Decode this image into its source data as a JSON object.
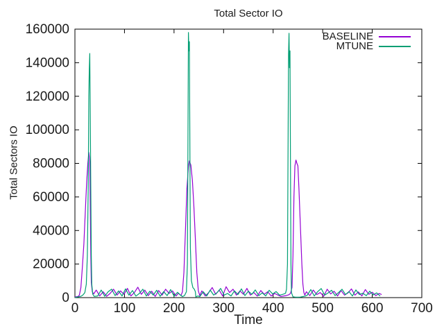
{
  "chart_data": {
    "type": "line",
    "title": "Total Sector IO",
    "xlabel": "Time",
    "ylabel": "Total Sectors IO",
    "xlim": [
      0,
      700
    ],
    "ylim": [
      0,
      160000
    ],
    "xticks": [
      0,
      100,
      200,
      300,
      400,
      500,
      600,
      700
    ],
    "yticks": [
      0,
      20000,
      40000,
      60000,
      80000,
      100000,
      120000,
      140000,
      160000
    ],
    "grid": false,
    "legend_position": "top-right-inside",
    "border_color": "#000000",
    "text_color": "#1a1a1a",
    "series": [
      {
        "name": "BASELINE",
        "color": "#9400d3",
        "points": [
          [
            0,
            400
          ],
          [
            6,
            600
          ],
          [
            9,
            1500
          ],
          [
            12,
            6000
          ],
          [
            15,
            18000
          ],
          [
            18,
            32000
          ],
          [
            20,
            45000
          ],
          [
            22,
            58000
          ],
          [
            24,
            70000
          ],
          [
            26,
            80000
          ],
          [
            28,
            86500
          ],
          [
            29,
            84000
          ],
          [
            30,
            81000
          ],
          [
            31,
            55000
          ],
          [
            32,
            25000
          ],
          [
            33,
            9000
          ],
          [
            35,
            3500
          ],
          [
            38,
            2200
          ],
          [
            43,
            4500
          ],
          [
            50,
            1000
          ],
          [
            57,
            3500
          ],
          [
            64,
            800
          ],
          [
            71,
            2500
          ],
          [
            78,
            5000
          ],
          [
            85,
            1500
          ],
          [
            92,
            4000
          ],
          [
            99,
            2000
          ],
          [
            106,
            5500
          ],
          [
            113,
            1000
          ],
          [
            120,
            3000
          ],
          [
            127,
            6200
          ],
          [
            134,
            2000
          ],
          [
            141,
            4500
          ],
          [
            148,
            1200
          ],
          [
            155,
            3800
          ],
          [
            162,
            700
          ],
          [
            169,
            4200
          ],
          [
            176,
            1500
          ],
          [
            183,
            5000
          ],
          [
            190,
            2500
          ],
          [
            197,
            4000
          ],
          [
            204,
            1000
          ],
          [
            209,
            2600
          ],
          [
            214,
            1200
          ],
          [
            217,
            3500
          ],
          [
            220,
            15000
          ],
          [
            223,
            40000
          ],
          [
            226,
            65000
          ],
          [
            229,
            78000
          ],
          [
            231,
            81500
          ],
          [
            234,
            79000
          ],
          [
            237,
            70000
          ],
          [
            240,
            55000
          ],
          [
            243,
            35000
          ],
          [
            246,
            15000
          ],
          [
            249,
            4000
          ],
          [
            252,
            1200
          ],
          [
            256,
            4000
          ],
          [
            263,
            1000
          ],
          [
            270,
            3000
          ],
          [
            277,
            6000
          ],
          [
            284,
            2000
          ],
          [
            291,
            4500
          ],
          [
            298,
            1000
          ],
          [
            305,
            6500
          ],
          [
            312,
            3000
          ],
          [
            319,
            5000
          ],
          [
            326,
            1500
          ],
          [
            333,
            4000
          ],
          [
            340,
            2000
          ],
          [
            347,
            5500
          ],
          [
            354,
            1500
          ],
          [
            361,
            3000
          ],
          [
            368,
            900
          ],
          [
            375,
            4200
          ],
          [
            382,
            2000
          ],
          [
            389,
            3500
          ],
          [
            396,
            1000
          ],
          [
            403,
            2500
          ],
          [
            410,
            1500
          ],
          [
            416,
            700
          ],
          [
            420,
            900
          ],
          [
            426,
            1200
          ],
          [
            431,
            1600
          ],
          [
            435,
            2500
          ],
          [
            438,
            6000
          ],
          [
            440,
            25000
          ],
          [
            442,
            60000
          ],
          [
            444,
            78500
          ],
          [
            446,
            82000
          ],
          [
            448,
            80000
          ],
          [
            450,
            78500
          ],
          [
            452,
            65000
          ],
          [
            454,
            50000
          ],
          [
            456,
            35000
          ],
          [
            458,
            20000
          ],
          [
            460,
            8000
          ],
          [
            462,
            3000
          ],
          [
            464,
            1500
          ],
          [
            467,
            3500
          ],
          [
            474,
            1200
          ],
          [
            481,
            4500
          ],
          [
            488,
            1800
          ],
          [
            495,
            3000
          ],
          [
            502,
            800
          ],
          [
            509,
            5000
          ],
          [
            516,
            2200
          ],
          [
            523,
            3800
          ],
          [
            530,
            1000
          ],
          [
            537,
            4200
          ],
          [
            544,
            1500
          ],
          [
            551,
            2800
          ],
          [
            558,
            5200
          ],
          [
            565,
            1500
          ],
          [
            572,
            3400
          ],
          [
            579,
            1000
          ],
          [
            586,
            4800
          ],
          [
            593,
            2000
          ],
          [
            600,
            3200
          ],
          [
            607,
            1200
          ],
          [
            614,
            2500
          ],
          [
            619,
            1800
          ]
        ]
      },
      {
        "name": "MTUNE",
        "color": "#009e73",
        "points": [
          [
            0,
            100
          ],
          [
            6,
            400
          ],
          [
            12,
            800
          ],
          [
            16,
            1500
          ],
          [
            20,
            3000
          ],
          [
            23,
            8000
          ],
          [
            25,
            25000
          ],
          [
            27,
            70000
          ],
          [
            28,
            120000
          ],
          [
            29,
            136000
          ],
          [
            30,
            145500
          ],
          [
            31,
            110000
          ],
          [
            32,
            64000
          ],
          [
            33,
            25000
          ],
          [
            34,
            8000
          ],
          [
            36,
            2000
          ],
          [
            39,
            700
          ],
          [
            46,
            1000
          ],
          [
            53,
            4500
          ],
          [
            60,
            800
          ],
          [
            67,
            3500
          ],
          [
            74,
            5000
          ],
          [
            81,
            1200
          ],
          [
            88,
            4000
          ],
          [
            95,
            1000
          ],
          [
            102,
            5200
          ],
          [
            109,
            1500
          ],
          [
            116,
            4200
          ],
          [
            123,
            900
          ],
          [
            130,
            2500
          ],
          [
            137,
            5000
          ],
          [
            144,
            1000
          ],
          [
            151,
            3800
          ],
          [
            158,
            1500
          ],
          [
            165,
            4400
          ],
          [
            172,
            800
          ],
          [
            179,
            3600
          ],
          [
            186,
            1200
          ],
          [
            193,
            4800
          ],
          [
            200,
            900
          ],
          [
            207,
            3200
          ],
          [
            213,
            1500
          ],
          [
            217,
            600
          ],
          [
            221,
            1200
          ],
          [
            225,
            3500
          ],
          [
            227,
            20000
          ],
          [
            228,
            90000
          ],
          [
            229,
            158000
          ],
          [
            230,
            147000
          ],
          [
            231,
            152500
          ],
          [
            232,
            90000
          ],
          [
            233,
            30000
          ],
          [
            235,
            10000
          ],
          [
            238,
            6000
          ],
          [
            241,
            5000
          ],
          [
            243,
            3500
          ],
          [
            244,
            400
          ],
          [
            248,
            1000
          ],
          [
            252,
            600
          ],
          [
            259,
            3500
          ],
          [
            266,
            1000
          ],
          [
            273,
            4500
          ],
          [
            280,
            1500
          ],
          [
            287,
            3000
          ],
          [
            294,
            5500
          ],
          [
            301,
            1500
          ],
          [
            308,
            2500
          ],
          [
            315,
            1000
          ],
          [
            322,
            4000
          ],
          [
            329,
            1800
          ],
          [
            336,
            5200
          ],
          [
            343,
            1200
          ],
          [
            350,
            3800
          ],
          [
            357,
            2000
          ],
          [
            364,
            4600
          ],
          [
            371,
            1200
          ],
          [
            378,
            2800
          ],
          [
            385,
            1000
          ],
          [
            392,
            4400
          ],
          [
            399,
            2200
          ],
          [
            406,
            3600
          ],
          [
            413,
            1500
          ],
          [
            418,
            1800
          ],
          [
            422,
            2200
          ],
          [
            425,
            2600
          ],
          [
            427,
            5000
          ],
          [
            429,
            20000
          ],
          [
            430,
            80000
          ],
          [
            431,
            145000
          ],
          [
            432,
            157500
          ],
          [
            433,
            137000
          ],
          [
            434,
            147000
          ],
          [
            435,
            80000
          ],
          [
            436,
            20000
          ],
          [
            437,
            3000
          ],
          [
            440,
            500
          ],
          [
            445,
            300
          ],
          [
            450,
            250
          ],
          [
            455,
            350
          ],
          [
            460,
            600
          ],
          [
            465,
            900
          ],
          [
            469,
            1500
          ],
          [
            476,
            4800
          ],
          [
            483,
            1000
          ],
          [
            490,
            3600
          ],
          [
            497,
            5400
          ],
          [
            504,
            1500
          ],
          [
            511,
            2800
          ],
          [
            518,
            4400
          ],
          [
            525,
            1200
          ],
          [
            532,
            3000
          ],
          [
            539,
            5000
          ],
          [
            546,
            1800
          ],
          [
            553,
            3600
          ],
          [
            560,
            1000
          ],
          [
            567,
            4600
          ],
          [
            574,
            1800
          ],
          [
            581,
            2600
          ],
          [
            588,
            1200
          ],
          [
            595,
            3800
          ],
          [
            602,
            1600
          ],
          [
            609,
            2800
          ],
          [
            616,
            900
          ]
        ]
      }
    ]
  }
}
